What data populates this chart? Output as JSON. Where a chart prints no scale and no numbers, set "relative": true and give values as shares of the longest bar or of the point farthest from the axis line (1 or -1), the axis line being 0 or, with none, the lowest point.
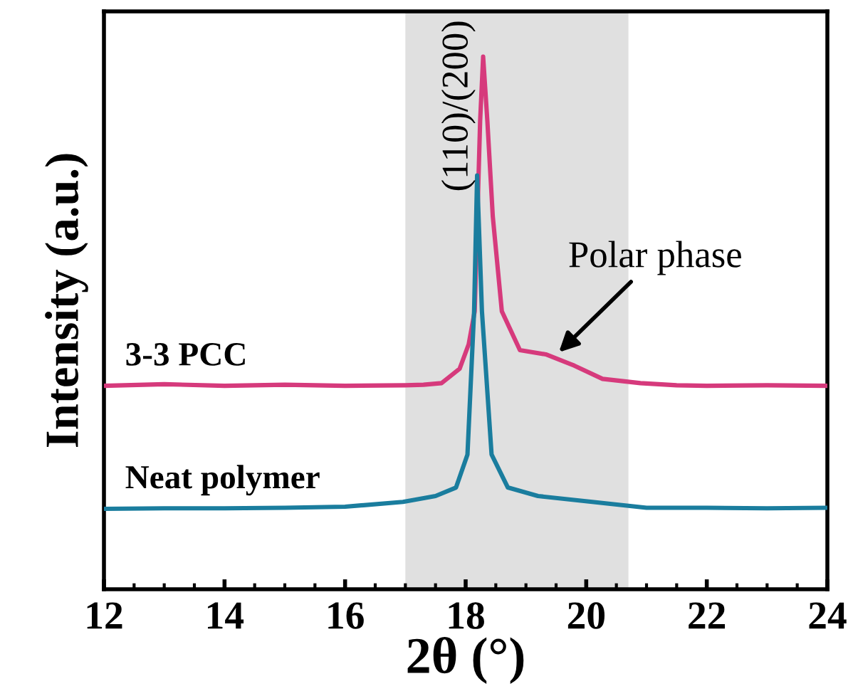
{
  "chart_data": {
    "type": "line",
    "relative": true,
    "xlabel": "2θ (°)",
    "ylabel": "Intensity (a.u.)",
    "xlim": [
      12,
      24
    ],
    "xticks": [
      12,
      14,
      16,
      18,
      20,
      22,
      24
    ],
    "legend": false,
    "grid": false,
    "marker": "none",
    "line_style": "solid",
    "series": [
      {
        "name": "3-3 PCC",
        "color": "#d63a7c",
        "x": [
          12,
          13,
          14,
          15,
          16,
          17,
          17.3,
          17.6,
          17.9,
          18.05,
          18.15,
          18.24,
          18.29,
          18.36,
          18.45,
          18.6,
          18.9,
          19.33,
          19.8,
          20.27,
          20.9,
          21.5,
          22,
          23,
          24
        ],
        "values": [
          0.382,
          0.385,
          0.382,
          0.384,
          0.382,
          0.383,
          0.384,
          0.387,
          0.414,
          0.46,
          0.522,
          0.879,
          1,
          0.879,
          0.7,
          0.522,
          0.449,
          0.441,
          0.42,
          0.395,
          0.387,
          0.383,
          0.382,
          0.383,
          0.382
        ]
      },
      {
        "name": "Neat polymer",
        "color": "#1a7d9e",
        "x": [
          12,
          13,
          14,
          15,
          16,
          16.96,
          17.5,
          17.84,
          18.03,
          18.14,
          18.19,
          18.27,
          18.43,
          18.7,
          19.2,
          20.1,
          21,
          22,
          23,
          24
        ],
        "values": [
          0.151,
          0.152,
          0.152,
          0.153,
          0.155,
          0.164,
          0.175,
          0.191,
          0.253,
          0.522,
          0.777,
          0.522,
          0.253,
          0.191,
          0.175,
          0.164,
          0.153,
          0.153,
          0.152,
          0.153
        ]
      }
    ],
    "bands": [
      {
        "axis": "x",
        "from": 17.0,
        "to": 20.7,
        "color": "#e0e0e0"
      }
    ],
    "annotations": [
      "(110)/(200)",
      {
        "text": "Polar phase",
        "x": 19.5,
        "y": 0.44
      }
    ]
  }
}
